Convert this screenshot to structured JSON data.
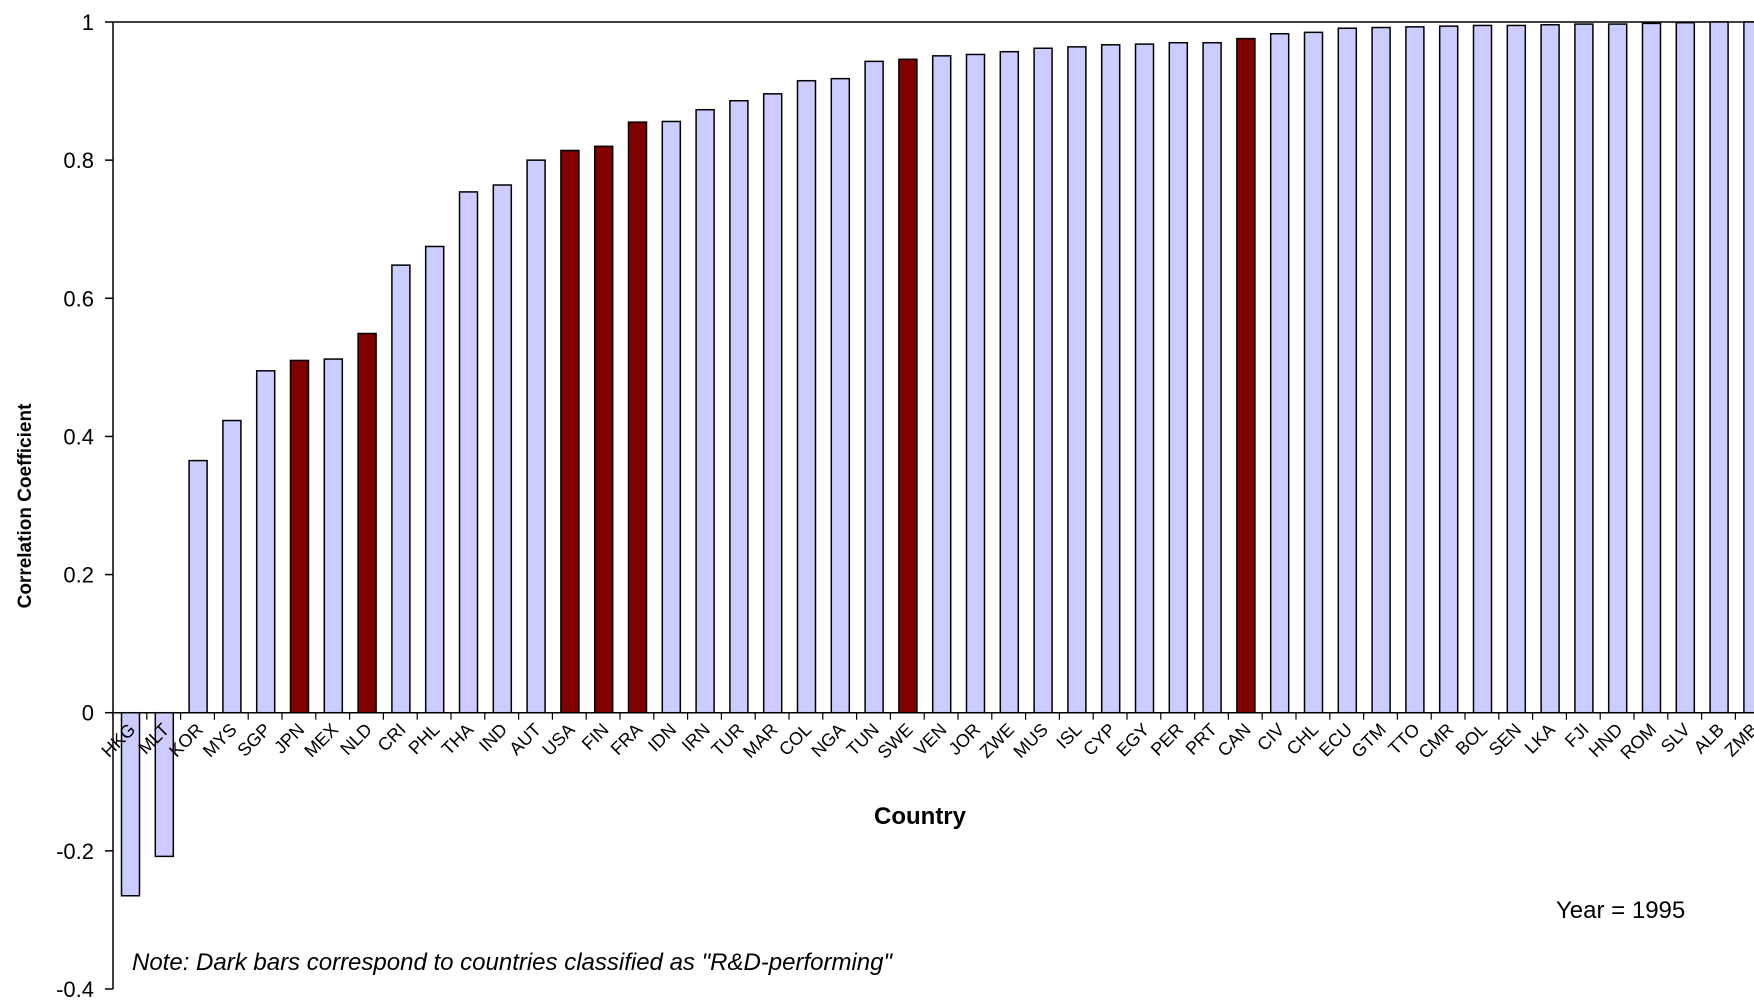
{
  "chart_data": {
    "type": "bar",
    "xlabel": "Country",
    "ylabel": "Correlation Coefficient",
    "ylim": [
      -0.4,
      1
    ],
    "yticks": [
      -0.4,
      -0.2,
      0,
      0.2,
      0.4,
      0.6,
      0.8,
      1
    ],
    "ytick_labels": [
      "-0.4",
      "-0.2",
      "0",
      "0.2",
      "0.4",
      "0.6",
      "0.8",
      "1"
    ],
    "categories": [
      "HKG",
      "MLT",
      "KOR",
      "MYS",
      "SGP",
      "JPN",
      "MEX",
      "NLD",
      "CRI",
      "PHL",
      "THA",
      "IND",
      "AUT",
      "USA",
      "FIN",
      "FRA",
      "IDN",
      "IRN",
      "TUR",
      "MAR",
      "COL",
      "NGA",
      "TUN",
      "SWE",
      "VEN",
      "JOR",
      "ZWE",
      "MUS",
      "ISL",
      "CYP",
      "EGY",
      "PER",
      "PRT",
      "CAN",
      "CIV",
      "CHL",
      "ECU",
      "GTM",
      "TTO",
      "CMR",
      "BOL",
      "SEN",
      "LKA",
      "FJI",
      "HND",
      "ROM",
      "SLV",
      "ALB",
      "ZMB"
    ],
    "values": [
      -0.265,
      -0.208,
      0.365,
      0.423,
      0.495,
      0.51,
      0.512,
      0.549,
      0.648,
      0.675,
      0.754,
      0.764,
      0.8,
      0.814,
      0.82,
      0.855,
      0.856,
      0.873,
      0.886,
      0.896,
      0.915,
      0.918,
      0.943,
      0.946,
      0.951,
      0.953,
      0.957,
      0.962,
      0.964,
      0.967,
      0.968,
      0.97,
      0.97,
      0.976,
      0.983,
      0.985,
      0.991,
      0.992,
      0.993,
      0.994,
      0.995,
      0.995,
      0.996,
      0.997,
      0.997,
      0.998,
      0.999,
      1.0,
      1.0
    ],
    "highlighted": [
      "JPN",
      "NLD",
      "USA",
      "FIN",
      "FRA",
      "SWE",
      "CAN"
    ],
    "colors": {
      "light_bar": "#ccccff",
      "dark_bar": "#800000",
      "outline": "#000000"
    },
    "annotations": {
      "note": "Note: Dark bars correspond to countries classified as \"R&D-performing\"",
      "year": "Year = 1995"
    }
  }
}
